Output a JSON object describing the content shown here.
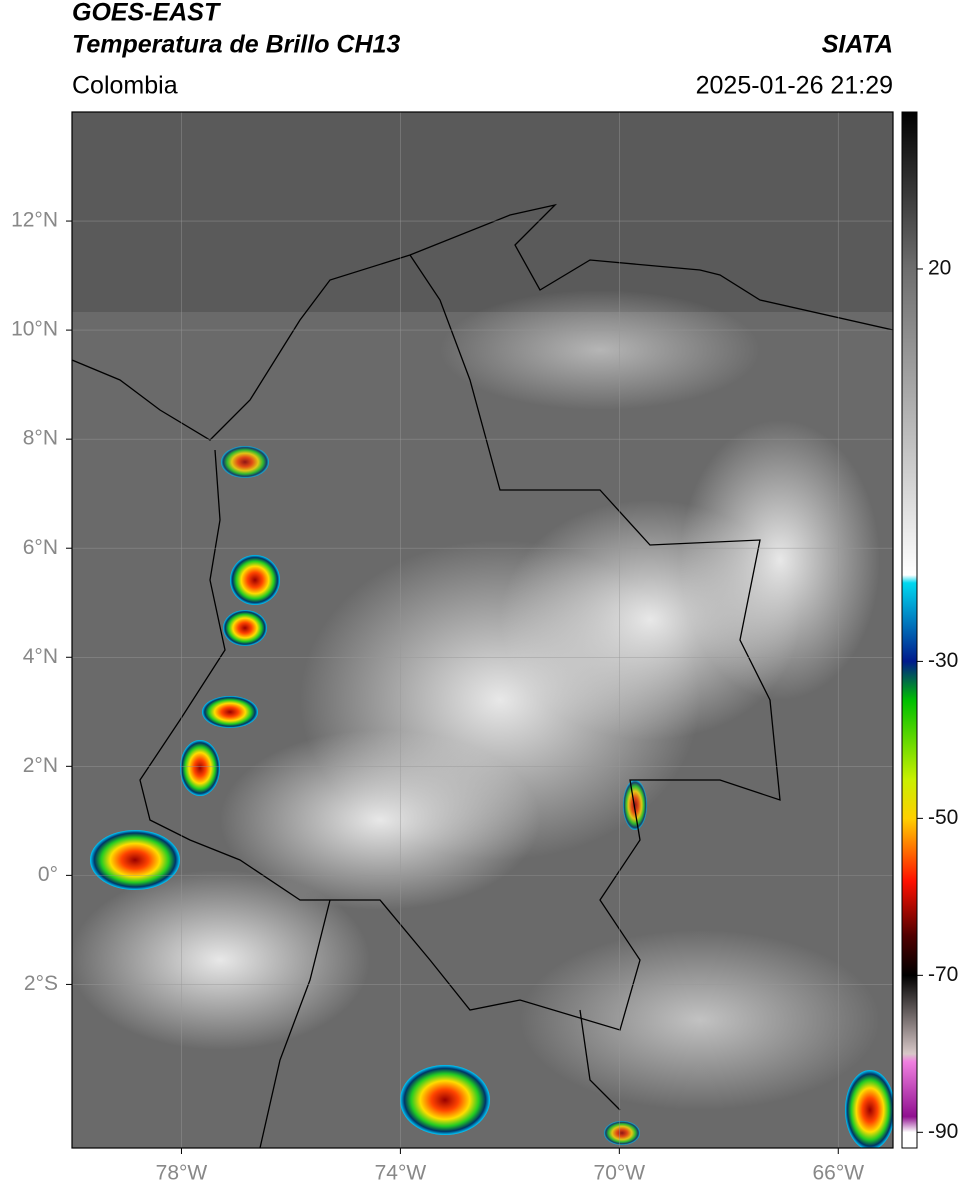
{
  "header": {
    "title": "GOES-EAST",
    "subtitle": "Temperatura de Brillo CH13",
    "source": "SIATA",
    "region": "Colombia",
    "datetime": "2025-01-26 21:29"
  },
  "map": {
    "xlim": [
      -80,
      -65
    ],
    "ylim": [
      -5,
      14
    ],
    "xticks": [
      {
        "value": -78,
        "label": "78°W"
      },
      {
        "value": -74,
        "label": "74°W"
      },
      {
        "value": -70,
        "label": "70°W"
      },
      {
        "value": -66,
        "label": "66°W"
      }
    ],
    "yticks": [
      {
        "value": 12,
        "label": "12°N"
      },
      {
        "value": 10,
        "label": "10°N"
      },
      {
        "value": 8,
        "label": "8°N"
      },
      {
        "value": 6,
        "label": "6°N"
      },
      {
        "value": 4,
        "label": "4°N"
      },
      {
        "value": 2,
        "label": "2°N"
      },
      {
        "value": 0,
        "label": "0°"
      },
      {
        "value": -2,
        "label": "2°S"
      }
    ],
    "grid": true
  },
  "colorbar": {
    "lim": [
      -92,
      40
    ],
    "ticks": [
      20,
      -30,
      -50,
      -70,
      -90
    ],
    "colormap": [
      {
        "value": 40,
        "color": "#000000"
      },
      {
        "value": 20,
        "color": "#6e6e6e"
      },
      {
        "value": -19,
        "color": "#ffffff"
      },
      {
        "value": -20,
        "color": "#00d8f0"
      },
      {
        "value": -30,
        "color": "#001a8c"
      },
      {
        "value": -35,
        "color": "#00c000"
      },
      {
        "value": -45,
        "color": "#c8f000"
      },
      {
        "value": -50,
        "color": "#ffd000"
      },
      {
        "value": -58,
        "color": "#ff1000"
      },
      {
        "value": -65,
        "color": "#500000"
      },
      {
        "value": -70,
        "color": "#000000"
      },
      {
        "value": -80,
        "color": "#d8c8c8"
      },
      {
        "value": -81,
        "color": "#f080e0"
      },
      {
        "value": -88,
        "color": "#901090"
      },
      {
        "value": -90,
        "color": "#ffffff"
      }
    ]
  }
}
